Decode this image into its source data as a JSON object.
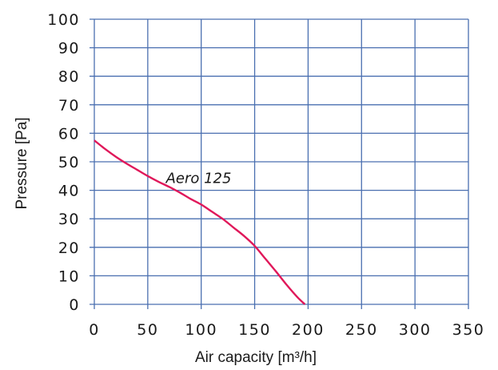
{
  "chart_data": {
    "type": "line",
    "title": "",
    "xlabel": "Air capacity [m³/h]",
    "ylabel": "Pressure [Pa]",
    "xlim": [
      0,
      350
    ],
    "ylim": [
      0,
      100
    ],
    "xticks": [
      0,
      50,
      100,
      150,
      200,
      250,
      300,
      350
    ],
    "yticks": [
      0,
      10,
      20,
      30,
      40,
      50,
      60,
      70,
      80,
      90,
      100
    ],
    "grid": true,
    "series": [
      {
        "name": "Aero 125",
        "color": "#e0185a",
        "x": [
          0,
          10,
          20,
          30,
          40,
          50,
          60,
          70,
          80,
          90,
          100,
          110,
          120,
          130,
          140,
          150,
          160,
          170,
          180,
          190,
          197
        ],
        "y": [
          57.5,
          54.5,
          51.8,
          49.4,
          47.2,
          45.0,
          43.0,
          41.2,
          39.2,
          37.0,
          35.0,
          32.5,
          30.0,
          27.0,
          24.0,
          20.5,
          16.0,
          11.5,
          6.8,
          2.5,
          0
        ]
      }
    ]
  },
  "colors": {
    "grid": "#4a6fb0",
    "line": "#e0185a"
  }
}
